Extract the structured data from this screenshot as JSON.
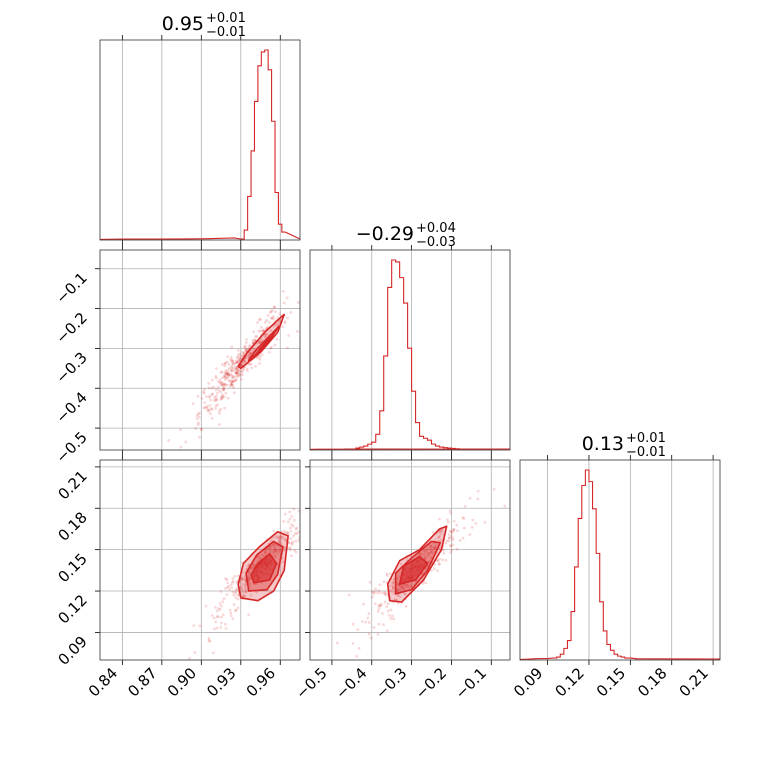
{
  "chart_data": {
    "type": "corner",
    "color": "#d62728",
    "grid": true,
    "parameters": [
      {
        "axis_range": [
          0.823,
          0.975
        ],
        "ticks": [
          "0.84",
          "0.87",
          "0.90",
          "0.93",
          "0.96"
        ],
        "title": {
          "main": "0.95",
          "upper": "+0.01",
          "lower": "−0.01"
        },
        "hist_start": 0.93,
        "hist_step": 0.0026,
        "hist_counts": [
          0.5,
          5,
          22,
          45,
          70,
          88,
          95,
          96,
          86,
          60,
          24,
          8,
          4
        ],
        "tail_counts": [
          [
            0.84,
            0.6
          ],
          [
            0.87,
            0.5
          ],
          [
            0.89,
            0.8
          ],
          [
            0.905,
            1.2
          ],
          [
            0.915,
            1.8
          ],
          [
            0.925,
            2.5
          ]
        ]
      },
      {
        "axis_range": [
          -0.555,
          -0.053
        ],
        "ticks": [
          "−0.5",
          "−0.4",
          "−0.3",
          "−0.2",
          "−0.1"
        ],
        "title": {
          "main": "−0.29",
          "upper": "+0.04",
          "lower": "−0.03"
        },
        "hist_start": -0.47,
        "hist_step": 0.01,
        "hist_counts": [
          0.5,
          0.5,
          0.5,
          1,
          1.5,
          2,
          3,
          4,
          8,
          20,
          48,
          83,
          97,
          96,
          88,
          75,
          52,
          30,
          14,
          7,
          6,
          5,
          3,
          2,
          1.5,
          1.2,
          1,
          0.8,
          0.6,
          0.5
        ],
        "tail_counts": [
          [
            -0.54,
            0.3
          ],
          [
            -0.52,
            0.4
          ],
          [
            -0.5,
            0.4
          ],
          [
            -0.48,
            0.5
          ],
          [
            -0.16,
            0.4
          ],
          [
            -0.14,
            0.3
          ],
          [
            -0.12,
            0.3
          ],
          [
            -0.1,
            0.3
          ]
        ]
      },
      {
        "axis_range": [
          0.07,
          0.215
        ],
        "ticks": [
          "0.09",
          "0.12",
          "0.15",
          "0.18",
          "0.21"
        ],
        "title": {
          "main": "0.13",
          "upper": "+0.01",
          "lower": "−0.01"
        },
        "hist_start": 0.094,
        "hist_step": 0.0026,
        "hist_counts": [
          1,
          1.5,
          3,
          6,
          10,
          25,
          48,
          73,
          90,
          98,
          92,
          78,
          55,
          30,
          15,
          8,
          5,
          3,
          2,
          1.5,
          1,
          1,
          0.8,
          0.6
        ],
        "tail_counts": [
          [
            0.075,
            0.5
          ],
          [
            0.08,
            1
          ],
          [
            0.085,
            1.5
          ],
          [
            0.09,
            1.5
          ]
        ]
      }
    ],
    "panels": [
      {
        "row": 1,
        "col": 0,
        "trend": {
          "x0": 0.93,
          "y0": -0.34,
          "slope": 3.8
        },
        "contours": [
          [
            [
              0.93,
              -0.35
            ],
            [
              0.945,
              -0.31
            ],
            [
              0.958,
              -0.26
            ],
            [
              0.963,
              -0.215
            ],
            [
              0.961,
              -0.22
            ],
            [
              0.948,
              -0.26
            ],
            [
              0.935,
              -0.31
            ],
            [
              0.928,
              -0.345
            ]
          ],
          [
            [
              0.936,
              -0.33
            ],
            [
              0.948,
              -0.295
            ],
            [
              0.957,
              -0.255
            ],
            [
              0.959,
              -0.245
            ],
            [
              0.95,
              -0.275
            ],
            [
              0.94,
              -0.31
            ]
          ],
          [
            [
              0.942,
              -0.315
            ],
            [
              0.951,
              -0.285
            ],
            [
              0.955,
              -0.265
            ],
            [
              0.95,
              -0.28
            ],
            [
              0.944,
              -0.305
            ]
          ]
        ]
      },
      {
        "row": 2,
        "col": 0,
        "trend": {
          "x0": 0.945,
          "y0": 0.138,
          "slope": 1.0
        },
        "contours": [
          [
            [
              0.93,
              0.115
            ],
            [
              0.943,
              0.113
            ],
            [
              0.955,
              0.12
            ],
            [
              0.963,
              0.135
            ],
            [
              0.966,
              0.16
            ],
            [
              0.958,
              0.163
            ],
            [
              0.944,
              0.152
            ],
            [
              0.932,
              0.14
            ],
            [
              0.928,
              0.125
            ]
          ],
          [
            [
              0.936,
              0.12
            ],
            [
              0.95,
              0.121
            ],
            [
              0.958,
              0.132
            ],
            [
              0.962,
              0.152
            ],
            [
              0.955,
              0.156
            ],
            [
              0.942,
              0.146
            ],
            [
              0.934,
              0.133
            ]
          ],
          [
            [
              0.94,
              0.126
            ],
            [
              0.952,
              0.128
            ],
            [
              0.957,
              0.14
            ],
            [
              0.952,
              0.147
            ],
            [
              0.943,
              0.14
            ],
            [
              0.938,
              0.132
            ]
          ]
        ]
      },
      {
        "row": 2,
        "col": 1,
        "trend": {
          "x0": -0.29,
          "y0": 0.135,
          "slope": 0.28
        },
        "contours": [
          [
            [
              -0.355,
              0.113
            ],
            [
              -0.325,
              0.112
            ],
            [
              -0.27,
              0.128
            ],
            [
              -0.225,
              0.15
            ],
            [
              -0.212,
              0.167
            ],
            [
              -0.23,
              0.165
            ],
            [
              -0.28,
              0.15
            ],
            [
              -0.33,
              0.142
            ],
            [
              -0.36,
              0.125
            ]
          ],
          [
            [
              -0.34,
              0.118
            ],
            [
              -0.3,
              0.121
            ],
            [
              -0.26,
              0.135
            ],
            [
              -0.228,
              0.155
            ],
            [
              -0.25,
              0.156
            ],
            [
              -0.3,
              0.144
            ],
            [
              -0.34,
              0.133
            ]
          ],
          [
            [
              -0.33,
              0.125
            ],
            [
              -0.29,
              0.128
            ],
            [
              -0.26,
              0.14
            ],
            [
              -0.28,
              0.145
            ],
            [
              -0.32,
              0.138
            ]
          ]
        ]
      }
    ]
  }
}
